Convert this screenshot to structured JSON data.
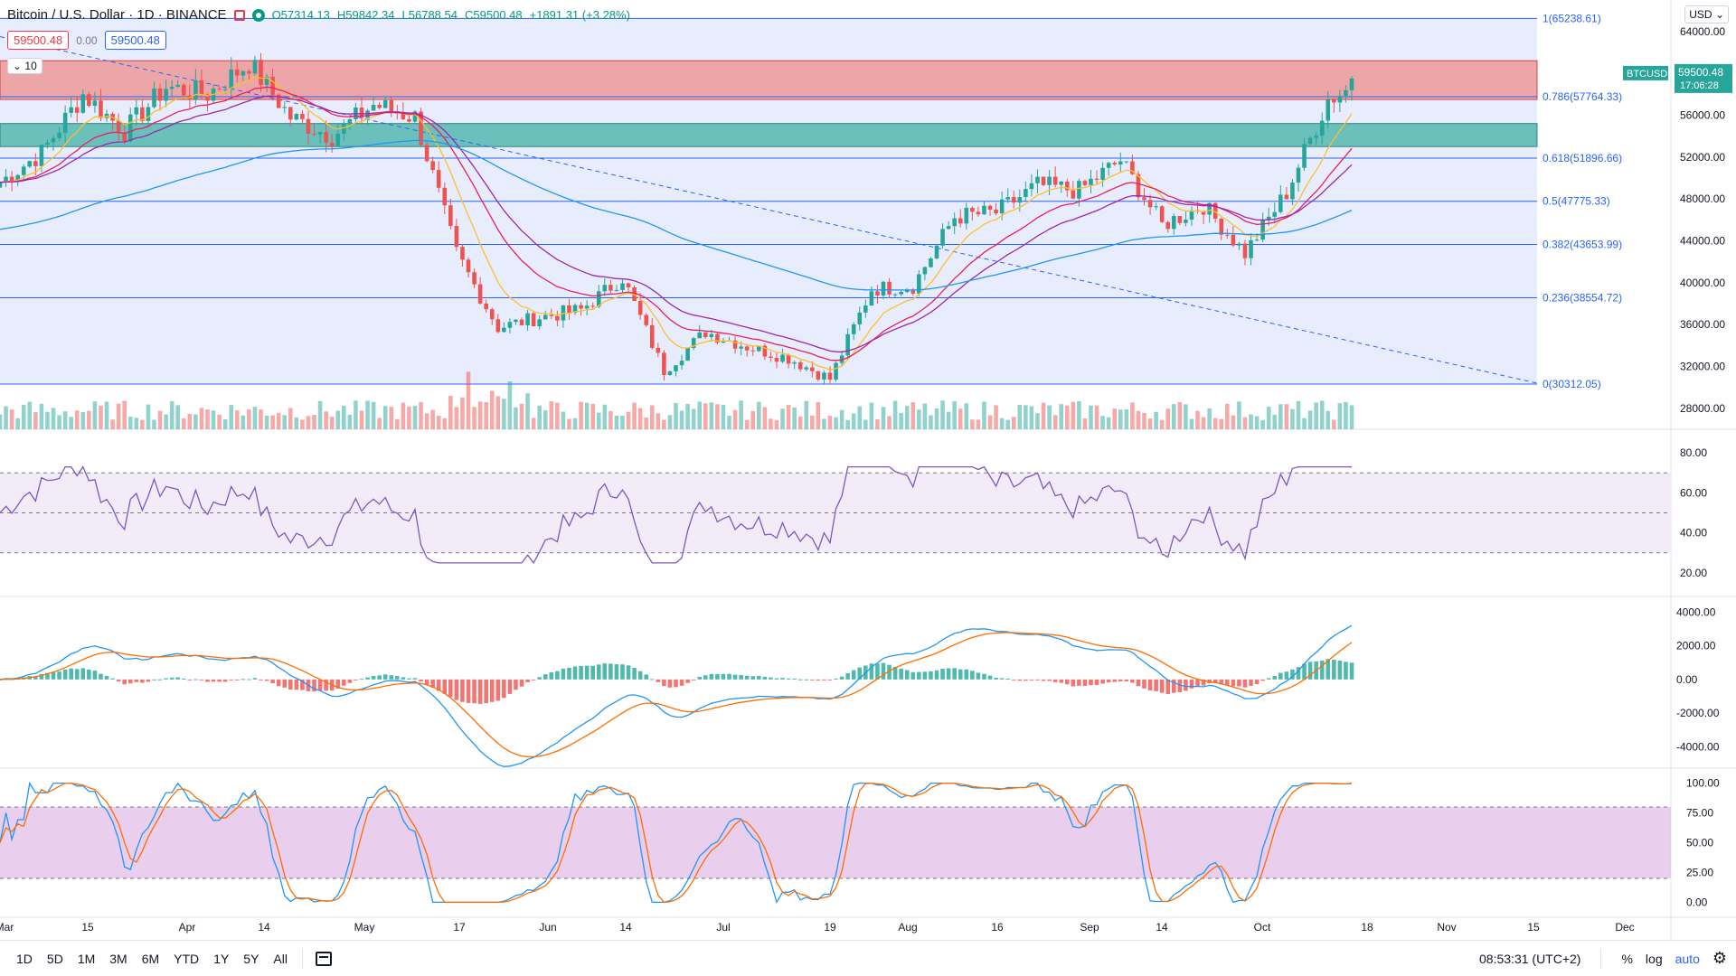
{
  "symbol": {
    "title": "Bitcoin / U.S. Dollar · 1D · BINANCE",
    "open": "O57314.13",
    "high": "H59842.34",
    "low": "L56788.54",
    "close": "C59500.48",
    "change": "+1891.31 (+3.28%)"
  },
  "trade": {
    "sell": "59500.48",
    "spread": "0.00",
    "buy": "59500.48"
  },
  "volume_toggle": "10",
  "currency": "USD",
  "price_axis": [
    "64000.00",
    "60000.00",
    "56000.00",
    "52000.00",
    "48000.00",
    "44000.00",
    "40000.00",
    "36000.00",
    "32000.00",
    "28000.00"
  ],
  "price_axis_cut": "6",
  "last_price": {
    "ticker": "BTCUSD",
    "price": "59500.48",
    "countdown": "17:06:28"
  },
  "fib_levels": [
    {
      "label": "1(65238.61)",
      "price": 65238.61
    },
    {
      "label": "0.786(57764.33)",
      "price": 57764.33
    },
    {
      "label": "0.618(51896.66)",
      "price": 51896.66
    },
    {
      "label": "0.5(47775.33)",
      "price": 47775.33
    },
    {
      "label": "0.382(43653.99)",
      "price": 43653.99
    },
    {
      "label": "0.236(38554.72)",
      "price": 38554.72
    },
    {
      "label": "0(30312.05)",
      "price": 30312.05
    }
  ],
  "rsi_axis": [
    "80.00",
    "60.00",
    "40.00",
    "20.00"
  ],
  "macd_axis": [
    "4000.00",
    "2000.00",
    "0.00",
    "-2000.00",
    "-4000.00"
  ],
  "stoch_axis": [
    "100.00",
    "75.00",
    "50.00",
    "25.00",
    "0.00"
  ],
  "time_axis": [
    "Mar",
    "15",
    "Apr",
    "14",
    "May",
    "17",
    "Jun",
    "14",
    "Jul",
    "19",
    "Aug",
    "16",
    "Sep",
    "14",
    "Oct",
    "18",
    "Nov",
    "15",
    "Dec"
  ],
  "ranges": [
    "1D",
    "5D",
    "1M",
    "3M",
    "6M",
    "YTD",
    "1Y",
    "5Y",
    "All"
  ],
  "clock": "08:53:31 (UTC+2)",
  "scale_options": [
    "%",
    "log",
    "auto"
  ],
  "colors": {
    "up": "#26a69a",
    "down": "#ef5350",
    "fib": "#2962ff",
    "ema20": "#e91e63",
    "ema50": "#9c27b0",
    "ema200": "#2196f3",
    "ema9": "#fbc02d"
  },
  "chart_data": {
    "type": "candlestick",
    "price_range": [
      26000,
      67000
    ],
    "weekly_closes": [
      {
        "date": "Mar 1",
        "c": 49600
      },
      {
        "date": "Mar 8",
        "c": 52400
      },
      {
        "date": "Mar 15",
        "c": 58000
      },
      {
        "date": "Mar 22",
        "c": 54500
      },
      {
        "date": "Mar 29",
        "c": 58700
      },
      {
        "date": "Apr 5",
        "c": 58000
      },
      {
        "date": "Apr 12",
        "c": 61000
      },
      {
        "date": "Apr 19",
        "c": 55800
      },
      {
        "date": "Apr 26",
        "c": 54000
      },
      {
        "date": "May 3",
        "c": 57000
      },
      {
        "date": "May 10",
        "c": 55800
      },
      {
        "date": "May 17",
        "c": 42800
      },
      {
        "date": "May 24",
        "c": 35700
      },
      {
        "date": "May 31",
        "c": 36700
      },
      {
        "date": "Jun 7",
        "c": 37400
      },
      {
        "date": "Jun 14",
        "c": 40500
      },
      {
        "date": "Jun 21",
        "c": 31600
      },
      {
        "date": "Jun 28",
        "c": 35300
      },
      {
        "date": "Jul 5",
        "c": 33900
      },
      {
        "date": "Jul 12",
        "c": 32800
      },
      {
        "date": "Jul 19",
        "c": 30800
      },
      {
        "date": "Jul 26",
        "c": 39400
      },
      {
        "date": "Aug 2",
        "c": 39700
      },
      {
        "date": "Aug 9",
        "c": 46300
      },
      {
        "date": "Aug 16",
        "c": 46700
      },
      {
        "date": "Aug 23",
        "c": 49300
      },
      {
        "date": "Aug 30",
        "c": 48800
      },
      {
        "date": "Sep 6",
        "c": 51700
      },
      {
        "date": "Sep 13",
        "c": 45500
      },
      {
        "date": "Sep 20",
        "c": 47400
      },
      {
        "date": "Sep 27",
        "c": 42800
      },
      {
        "date": "Oct 4",
        "c": 48600
      },
      {
        "date": "Oct 11",
        "c": 57500
      },
      {
        "date": "Oct 15",
        "c": 59500
      }
    ]
  }
}
